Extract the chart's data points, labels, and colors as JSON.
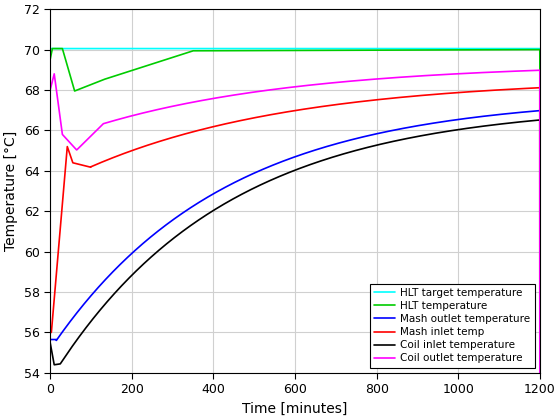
{
  "title": "",
  "xlabel": "Time [minutes]",
  "ylabel": "Temperature [°C]",
  "xlim": [
    0,
    1200
  ],
  "ylim": [
    54,
    72
  ],
  "yticks": [
    54,
    56,
    58,
    60,
    62,
    64,
    66,
    68,
    70,
    72
  ],
  "xticks": [
    0,
    200,
    400,
    600,
    800,
    1000,
    1200
  ],
  "legend": [
    {
      "label": "HLT target temperature",
      "color": "#00FFFF",
      "lw": 1.2
    },
    {
      "label": "HLT temperature",
      "color": "#00CC00",
      "lw": 1.2
    },
    {
      "label": "Mash outlet temperature",
      "color": "#0000FF",
      "lw": 1.2
    },
    {
      "label": "Mash inlet temp",
      "color": "#FF0000",
      "lw": 1.2
    },
    {
      "label": "Coil inlet temperature",
      "color": "#000000",
      "lw": 1.2
    },
    {
      "label": "Coil outlet temperature",
      "color": "#FF00FF",
      "lw": 1.2
    }
  ],
  "background_color": "#ffffff",
  "grid_color": "#d0d0d0"
}
